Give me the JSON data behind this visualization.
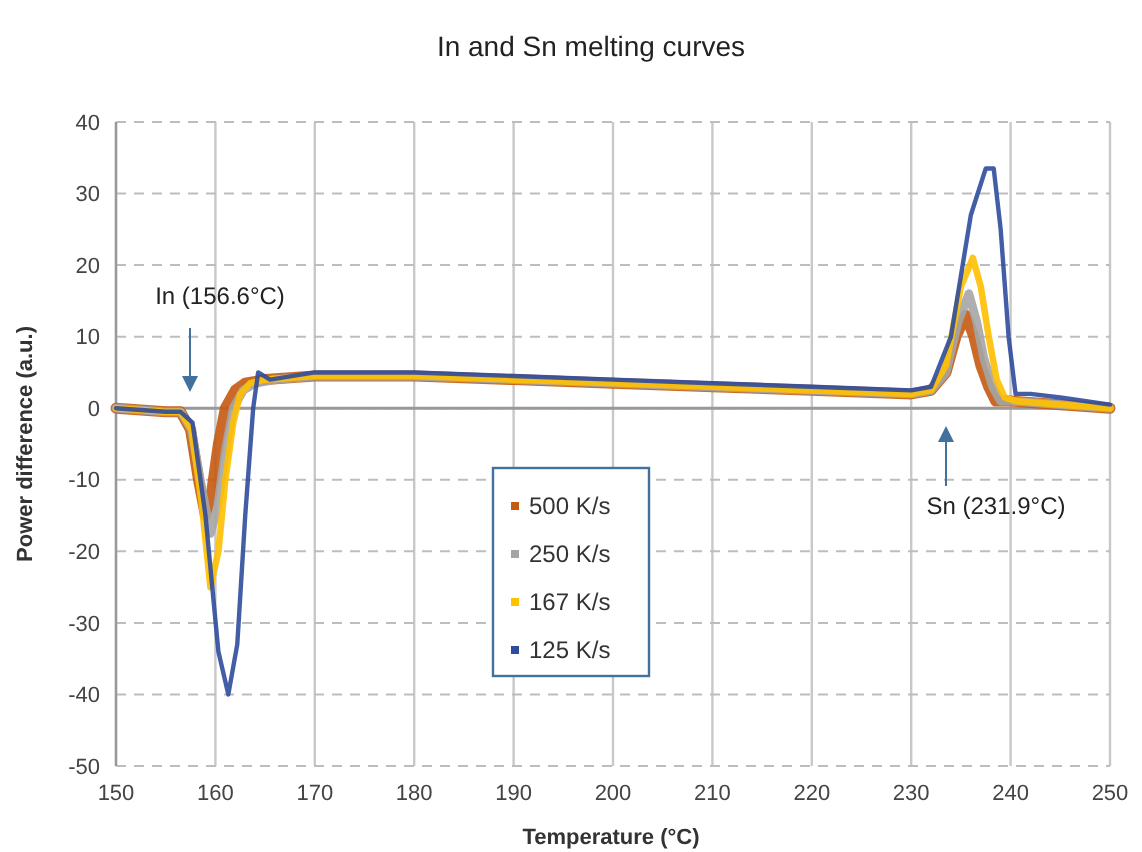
{
  "chart_data": {
    "type": "line",
    "title": "In and Sn melting curves",
    "xlabel": "Temperature (°C)",
    "ylabel": "Power difference  (a.u.)",
    "xlim": [
      150,
      250
    ],
    "xticks": [
      150,
      160,
      170,
      180,
      190,
      200,
      210,
      220,
      230,
      240,
      250
    ],
    "ylim": [
      -50,
      40
    ],
    "yticks": [
      -50,
      -40,
      -30,
      -20,
      -10,
      0,
      10,
      20,
      30,
      40
    ],
    "grid": true,
    "legend": "center",
    "annotations": [
      "In (156.6°C)",
      "Sn (231.9°C)"
    ],
    "series": [
      {
        "name": "500 K/s",
        "color": "#c55a11",
        "x": [
          150,
          155,
          156.5,
          157.5,
          158.3,
          159,
          159.6,
          160.3,
          161,
          162,
          163,
          165,
          170,
          180,
          190,
          200,
          210,
          220,
          230,
          232,
          233.5,
          234.5,
          235.5,
          236.3,
          237,
          237.8,
          238.5,
          240,
          245,
          250
        ],
        "values": [
          0,
          -0.5,
          -0.5,
          -3,
          -10,
          -15,
          -12,
          -5,
          0,
          2.5,
          3.5,
          4,
          4.5,
          4.5,
          4,
          3.5,
          3,
          2.5,
          2,
          2.5,
          5,
          10,
          13,
          10,
          6,
          3,
          1,
          1,
          0.5,
          0
        ]
      },
      {
        "name": "250 K/s",
        "color": "#a5a5a5",
        "x": [
          150,
          155,
          156.5,
          157.6,
          158.6,
          159.5,
          160.2,
          161,
          161.8,
          162.8,
          164,
          166,
          170,
          180,
          190,
          200,
          210,
          220,
          230,
          232,
          233.5,
          234.7,
          235.8,
          236.6,
          237.3,
          238.2,
          239,
          240,
          245,
          250
        ],
        "values": [
          0,
          -0.5,
          -0.5,
          -3,
          -11,
          -17.5,
          -14,
          -6,
          0,
          2.5,
          3.5,
          4,
          4.5,
          4.5,
          4,
          3.5,
          3,
          2.5,
          2,
          2.5,
          5,
          12,
          16,
          12,
          7,
          3,
          1,
          1,
          0.5,
          0
        ]
      },
      {
        "name": "167 K/s",
        "color": "#ffc000",
        "x": [
          150,
          155,
          156.5,
          157.6,
          158.6,
          159.5,
          160.3,
          161,
          161.8,
          162.5,
          163.5,
          165,
          170,
          180,
          190,
          200,
          210,
          220,
          230,
          232,
          233.5,
          235,
          236.2,
          237,
          237.8,
          238.6,
          239.4,
          240.5,
          245,
          250
        ],
        "values": [
          0,
          -0.5,
          -0.5,
          -3,
          -13,
          -25,
          -20,
          -10,
          -2,
          2,
          3.5,
          4,
          4.5,
          4.5,
          4,
          3.5,
          3,
          2.5,
          2,
          2.5,
          6,
          17,
          21,
          17,
          10,
          4,
          1.5,
          1,
          0.5,
          0
        ]
      },
      {
        "name": "125 K/s",
        "color": "#2f4b9c",
        "x": [
          150,
          155,
          156.5,
          157.7,
          159,
          160.3,
          161.3,
          162.2,
          163,
          163.8,
          164.3,
          165.5,
          170,
          180,
          190,
          200,
          210,
          220,
          230,
          232,
          234,
          236,
          237.5,
          238.3,
          239,
          239.8,
          240.5,
          242,
          245,
          250
        ],
        "values": [
          0,
          -0.5,
          -0.5,
          -2,
          -15,
          -34,
          -40,
          -33,
          -15,
          0,
          5,
          4,
          5,
          5,
          4.5,
          4,
          3.5,
          3,
          2.5,
          3,
          10,
          27,
          33.5,
          33.5,
          25,
          10,
          2,
          2,
          1.5,
          0.5
        ]
      }
    ]
  }
}
